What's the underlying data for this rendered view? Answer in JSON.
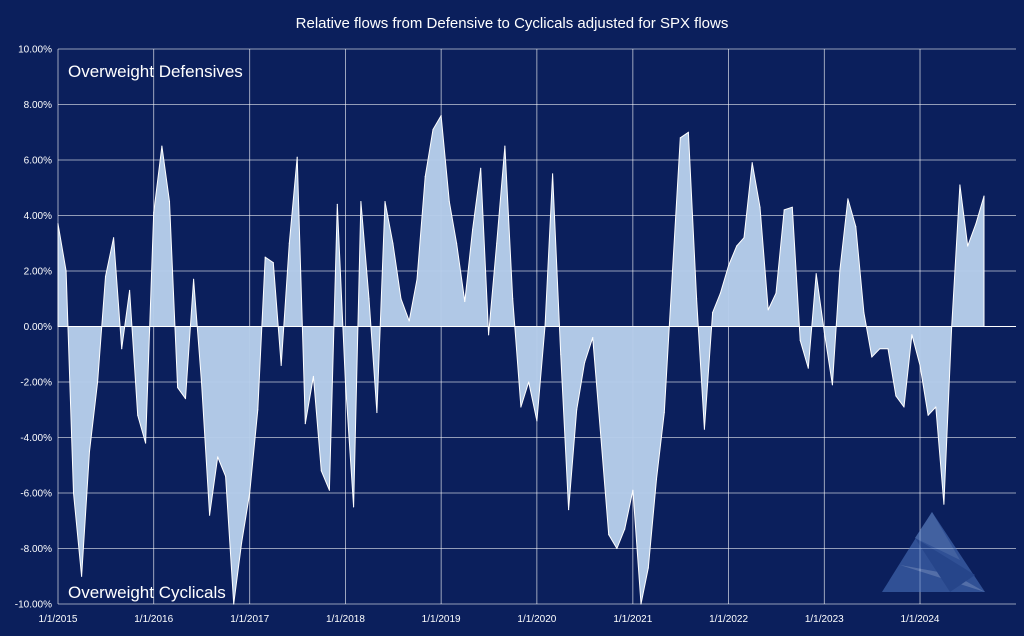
{
  "chart_data": {
    "type": "area",
    "title": "Relative flows from Defensive to Cyclicals adjusted for SPX flows",
    "xlabel": "",
    "ylabel": "",
    "ylim": [
      -0.1,
      0.1
    ],
    "y_ticks": [
      {
        "value": 0.1,
        "label": "10.00%"
      },
      {
        "value": 0.08,
        "label": "8.00%"
      },
      {
        "value": 0.06,
        "label": "6.00%"
      },
      {
        "value": 0.04,
        "label": "4.00%"
      },
      {
        "value": 0.02,
        "label": "2.00%"
      },
      {
        "value": 0.0,
        "label": "0.00%"
      },
      {
        "value": -0.02,
        "label": "-2.00%"
      },
      {
        "value": -0.04,
        "label": "-4.00%"
      },
      {
        "value": -0.06,
        "label": "-6.00%"
      },
      {
        "value": -0.08,
        "label": "-8.00%"
      },
      {
        "value": -0.1,
        "label": "-10.00%"
      }
    ],
    "x_ticks": [
      "1/1/2015",
      "1/1/2016",
      "1/1/2017",
      "1/1/2018",
      "1/1/2019",
      "1/1/2020",
      "1/1/2021",
      "1/1/2022",
      "1/1/2023",
      "1/1/2024"
    ],
    "grid": true,
    "fill_color": "#b6cdea",
    "line_color": "#ffffff",
    "annotations": {
      "top_left": "Overweight Defensives",
      "bottom_left": "Overweight Cyclicals"
    },
    "series": [
      {
        "values": [
          {
            "x": "2015-01-01",
            "y": 0.037
          },
          {
            "x": "2015-02-01",
            "y": 0.02
          },
          {
            "x": "2015-03-01",
            "y": -0.06
          },
          {
            "x": "2015-04-01",
            "y": -0.09
          },
          {
            "x": "2015-05-01",
            "y": -0.045
          },
          {
            "x": "2015-06-01",
            "y": -0.02
          },
          {
            "x": "2015-07-01",
            "y": 0.018
          },
          {
            "x": "2015-08-01",
            "y": 0.032
          },
          {
            "x": "2015-09-01",
            "y": -0.008
          },
          {
            "x": "2015-10-01",
            "y": 0.013
          },
          {
            "x": "2015-11-01",
            "y": -0.032
          },
          {
            "x": "2015-12-01",
            "y": -0.042
          },
          {
            "x": "2016-01-01",
            "y": 0.041
          },
          {
            "x": "2016-02-01",
            "y": 0.065
          },
          {
            "x": "2016-03-01",
            "y": 0.045
          },
          {
            "x": "2016-04-01",
            "y": -0.022
          },
          {
            "x": "2016-05-01",
            "y": -0.026
          },
          {
            "x": "2016-06-01",
            "y": 0.017
          },
          {
            "x": "2016-07-01",
            "y": -0.02
          },
          {
            "x": "2016-08-01",
            "y": -0.068
          },
          {
            "x": "2016-09-01",
            "y": -0.047
          },
          {
            "x": "2016-10-01",
            "y": -0.054
          },
          {
            "x": "2016-11-01",
            "y": -0.1
          },
          {
            "x": "2016-12-01",
            "y": -0.078
          },
          {
            "x": "2017-01-01",
            "y": -0.06
          },
          {
            "x": "2017-02-01",
            "y": -0.03
          },
          {
            "x": "2017-03-01",
            "y": 0.025
          },
          {
            "x": "2017-04-01",
            "y": 0.023
          },
          {
            "x": "2017-05-01",
            "y": -0.014
          },
          {
            "x": "2017-06-01",
            "y": 0.03
          },
          {
            "x": "2017-07-01",
            "y": 0.061
          },
          {
            "x": "2017-08-01",
            "y": -0.035
          },
          {
            "x": "2017-09-01",
            "y": -0.018
          },
          {
            "x": "2017-10-01",
            "y": -0.052
          },
          {
            "x": "2017-11-01",
            "y": -0.059
          },
          {
            "x": "2017-12-01",
            "y": 0.044
          },
          {
            "x": "2018-01-01",
            "y": -0.02
          },
          {
            "x": "2018-02-01",
            "y": -0.065
          },
          {
            "x": "2018-03-01",
            "y": 0.045
          },
          {
            "x": "2018-04-01",
            "y": 0.01
          },
          {
            "x": "2018-05-01",
            "y": -0.031
          },
          {
            "x": "2018-06-01",
            "y": 0.045
          },
          {
            "x": "2018-07-01",
            "y": 0.03
          },
          {
            "x": "2018-08-01",
            "y": 0.01
          },
          {
            "x": "2018-09-01",
            "y": 0.002
          },
          {
            "x": "2018-10-01",
            "y": 0.017
          },
          {
            "x": "2018-11-01",
            "y": 0.054
          },
          {
            "x": "2018-12-01",
            "y": 0.071
          },
          {
            "x": "2019-01-01",
            "y": 0.076
          },
          {
            "x": "2019-02-01",
            "y": 0.045
          },
          {
            "x": "2019-03-01",
            "y": 0.03
          },
          {
            "x": "2019-04-01",
            "y": 0.009
          },
          {
            "x": "2019-05-01",
            "y": 0.035
          },
          {
            "x": "2019-06-01",
            "y": 0.057
          },
          {
            "x": "2019-07-01",
            "y": -0.003
          },
          {
            "x": "2019-08-01",
            "y": 0.03
          },
          {
            "x": "2019-09-01",
            "y": 0.065
          },
          {
            "x": "2019-10-01",
            "y": 0.01
          },
          {
            "x": "2019-11-01",
            "y": -0.029
          },
          {
            "x": "2019-12-01",
            "y": -0.02
          },
          {
            "x": "2020-01-01",
            "y": -0.034
          },
          {
            "x": "2020-02-01",
            "y": 0.0
          },
          {
            "x": "2020-03-01",
            "y": 0.055
          },
          {
            "x": "2020-04-01",
            "y": -0.01
          },
          {
            "x": "2020-05-01",
            "y": -0.066
          },
          {
            "x": "2020-06-01",
            "y": -0.03
          },
          {
            "x": "2020-07-01",
            "y": -0.013
          },
          {
            "x": "2020-08-01",
            "y": -0.004
          },
          {
            "x": "2020-09-01",
            "y": -0.04
          },
          {
            "x": "2020-10-01",
            "y": -0.075
          },
          {
            "x": "2020-11-01",
            "y": -0.08
          },
          {
            "x": "2020-12-01",
            "y": -0.073
          },
          {
            "x": "2021-01-01",
            "y": -0.059
          },
          {
            "x": "2021-02-01",
            "y": -0.1
          },
          {
            "x": "2021-03-01",
            "y": -0.087
          },
          {
            "x": "2021-04-01",
            "y": -0.055
          },
          {
            "x": "2021-05-01",
            "y": -0.031
          },
          {
            "x": "2021-06-01",
            "y": 0.02
          },
          {
            "x": "2021-07-01",
            "y": 0.068
          },
          {
            "x": "2021-08-01",
            "y": 0.07
          },
          {
            "x": "2021-09-01",
            "y": 0.01
          },
          {
            "x": "2021-10-01",
            "y": -0.037
          },
          {
            "x": "2021-11-01",
            "y": 0.005
          },
          {
            "x": "2021-12-01",
            "y": 0.012
          },
          {
            "x": "2022-01-01",
            "y": 0.022
          },
          {
            "x": "2022-02-01",
            "y": 0.029
          },
          {
            "x": "2022-03-01",
            "y": 0.032
          },
          {
            "x": "2022-04-01",
            "y": 0.059
          },
          {
            "x": "2022-05-01",
            "y": 0.043
          },
          {
            "x": "2022-06-01",
            "y": 0.006
          },
          {
            "x": "2022-07-01",
            "y": 0.012
          },
          {
            "x": "2022-08-01",
            "y": 0.042
          },
          {
            "x": "2022-09-01",
            "y": 0.043
          },
          {
            "x": "2022-10-01",
            "y": -0.005
          },
          {
            "x": "2022-11-01",
            "y": -0.015
          },
          {
            "x": "2022-12-01",
            "y": 0.019
          },
          {
            "x": "2023-01-01",
            "y": -0.002
          },
          {
            "x": "2023-02-01",
            "y": -0.021
          },
          {
            "x": "2023-03-01",
            "y": 0.02
          },
          {
            "x": "2023-04-01",
            "y": 0.046
          },
          {
            "x": "2023-05-01",
            "y": 0.036
          },
          {
            "x": "2023-06-01",
            "y": 0.005
          },
          {
            "x": "2023-07-01",
            "y": -0.011
          },
          {
            "x": "2023-08-01",
            "y": -0.008
          },
          {
            "x": "2023-09-01",
            "y": -0.008
          },
          {
            "x": "2023-10-01",
            "y": -0.025
          },
          {
            "x": "2023-11-01",
            "y": -0.029
          },
          {
            "x": "2023-12-01",
            "y": -0.003
          },
          {
            "x": "2024-01-01",
            "y": -0.014
          },
          {
            "x": "2024-02-01",
            "y": -0.032
          },
          {
            "x": "2024-03-01",
            "y": -0.029
          },
          {
            "x": "2024-04-01",
            "y": -0.064
          },
          {
            "x": "2024-05-01",
            "y": 0.0
          },
          {
            "x": "2024-06-01",
            "y": 0.051
          },
          {
            "x": "2024-07-01",
            "y": 0.029
          },
          {
            "x": "2024-08-01",
            "y": 0.037
          },
          {
            "x": "2024-09-01",
            "y": 0.047
          }
        ]
      }
    ]
  }
}
